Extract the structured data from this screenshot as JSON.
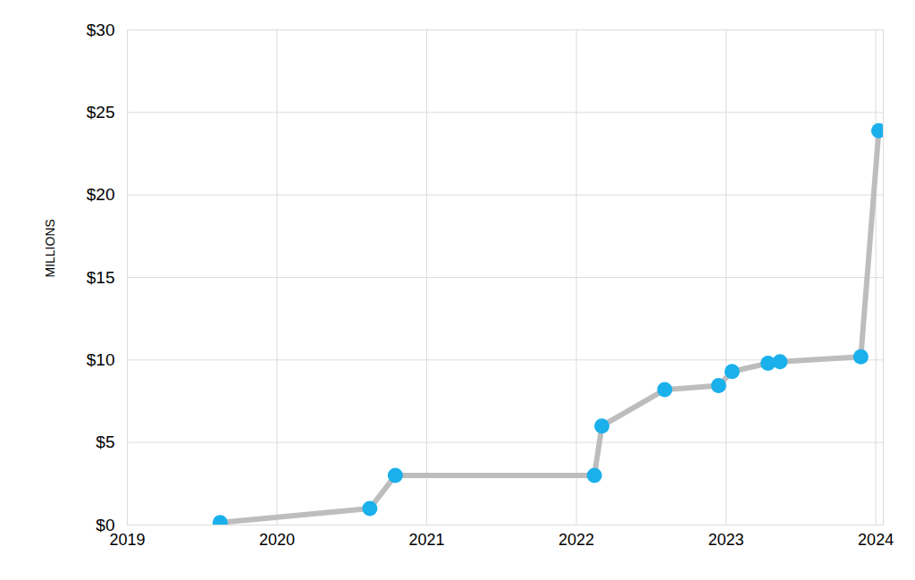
{
  "chart_data": {
    "type": "line",
    "y_label": "MILLIONS",
    "x": [
      2019.62,
      2020.62,
      2020.79,
      2022.12,
      2022.17,
      2022.59,
      2022.95,
      2023.04,
      2023.28,
      2023.36,
      2023.9,
      2024.02
    ],
    "values": [
      0.15,
      1.0,
      3.0,
      3.0,
      6.0,
      8.2,
      8.45,
      9.3,
      9.8,
      9.9,
      10.2,
      23.9
    ],
    "color": "#1ab0ec",
    "marker": "circle",
    "xlim": [
      2019,
      2024.05
    ],
    "xticks": [
      2019,
      2020,
      2021,
      2022,
      2023,
      2024
    ],
    "ylim": [
      0,
      30
    ],
    "yticks": [
      {
        "value": 0,
        "label": "$0"
      },
      {
        "value": 5,
        "label": "$5"
      },
      {
        "value": 10,
        "label": "$10"
      },
      {
        "value": 15,
        "label": "$15"
      },
      {
        "value": 20,
        "label": "$20"
      },
      {
        "value": 25,
        "label": "$25"
      },
      {
        "value": 30,
        "label": "$30"
      }
    ],
    "grid": true
  }
}
